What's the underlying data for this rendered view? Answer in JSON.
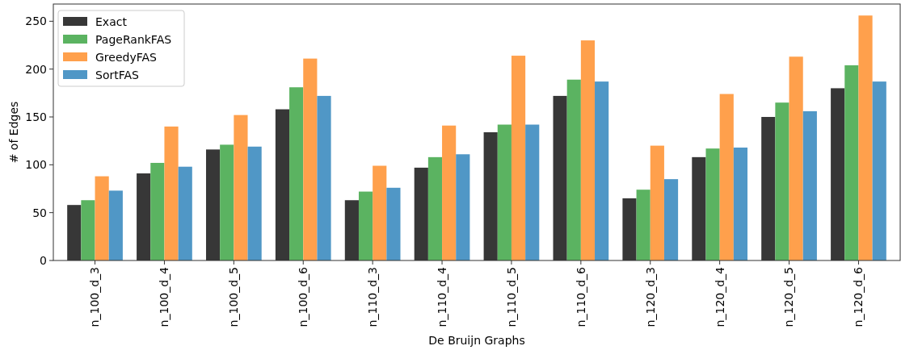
{
  "chart_data": {
    "type": "bar",
    "xlabel": "De Bruijn Graphs",
    "ylabel": "# of Edges",
    "categories": [
      "n_100_d_3",
      "n_100_d_4",
      "n_100_d_5",
      "n_100_d_6",
      "n_110_d_3",
      "n_110_d_4",
      "n_110_d_5",
      "n_110_d_6",
      "n_120_d_3",
      "n_120_d_4",
      "n_120_d_5",
      "n_120_d_6"
    ],
    "series": [
      {
        "name": "Exact",
        "color": "#373737",
        "values": [
          58,
          91,
          116,
          158,
          63,
          97,
          134,
          172,
          65,
          108,
          150,
          180
        ]
      },
      {
        "name": "PageRankFAS",
        "color": "#5bb361",
        "values": [
          63,
          102,
          121,
          181,
          72,
          108,
          142,
          189,
          74,
          117,
          165,
          204
        ]
      },
      {
        "name": "GreedyFAS",
        "color": "#ffa04c",
        "values": [
          88,
          140,
          152,
          211,
          99,
          141,
          214,
          230,
          120,
          174,
          213,
          256
        ]
      },
      {
        "name": "SortFAS",
        "color": "#5097c6",
        "values": [
          73,
          98,
          119,
          172,
          76,
          111,
          142,
          187,
          85,
          118,
          156,
          187
        ]
      }
    ],
    "ylim": [
      0,
      268
    ],
    "yticks": [
      0,
      50,
      100,
      150,
      200,
      250
    ],
    "legend": "top left"
  }
}
